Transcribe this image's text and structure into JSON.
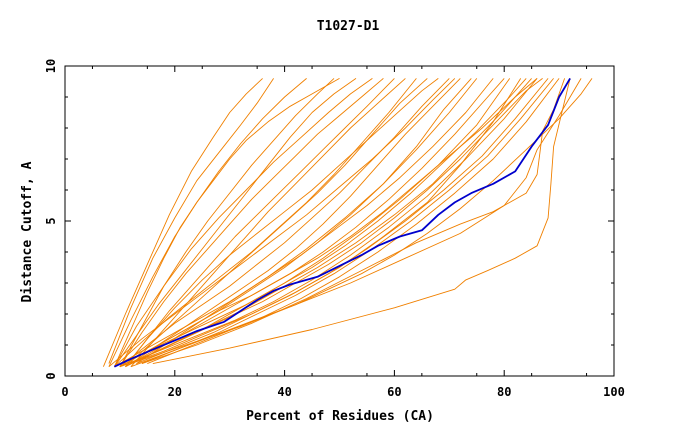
{
  "chart_data": {
    "type": "line",
    "title": "T1027-D1",
    "xlabel": "Percent of Residues (CA)",
    "ylabel": "Distance Cutoff, A",
    "xlim": [
      0,
      100
    ],
    "ylim": [
      0,
      10
    ],
    "x_ticks": [
      "0",
      "20",
      "40",
      "60",
      "80",
      "100"
    ],
    "y_ticks": [
      "0",
      "5",
      "10"
    ],
    "grid": false,
    "legend": "none",
    "colors": {
      "background_models": "#f08000",
      "highlight": "#0000cc",
      "axes": "#000000"
    },
    "highlight_series": {
      "x": [
        9,
        12,
        16,
        20,
        24,
        29,
        32,
        35,
        38,
        41,
        46,
        50,
        54,
        57,
        61,
        65,
        68,
        71,
        74,
        78,
        82,
        85,
        88,
        90,
        92
      ],
      "y": [
        0.3,
        0.55,
        0.85,
        1.15,
        1.45,
        1.75,
        2.1,
        2.45,
        2.75,
        2.95,
        3.2,
        3.55,
        3.9,
        4.2,
        4.5,
        4.7,
        5.2,
        5.6,
        5.9,
        6.2,
        6.6,
        7.4,
        8.1,
        9.0,
        9.6
      ]
    },
    "background_series": [
      {
        "x": [
          9,
          12,
          15,
          18,
          21,
          24,
          27,
          30,
          33,
          37,
          41,
          45,
          50
        ],
        "y": [
          0.3,
          1.5,
          2.7,
          3.8,
          4.8,
          5.6,
          6.3,
          7.0,
          7.6,
          8.2,
          8.7,
          9.1,
          9.6
        ]
      },
      {
        "x": [
          8,
          12,
          16,
          20,
          24,
          28,
          32,
          35,
          38
        ],
        "y": [
          0.4,
          2.2,
          3.8,
          5.1,
          6.3,
          7.2,
          8.1,
          8.8,
          9.6
        ]
      },
      {
        "x": [
          7,
          11,
          15,
          19,
          23,
          27,
          30,
          33,
          36
        ],
        "y": [
          0.3,
          2.0,
          3.6,
          5.2,
          6.6,
          7.7,
          8.5,
          9.1,
          9.6
        ]
      },
      {
        "x": [
          10,
          14,
          18,
          22,
          26,
          30,
          34,
          38,
          42,
          46,
          50,
          54,
          58
        ],
        "y": [
          0.3,
          1.4,
          2.4,
          3.3,
          4.1,
          4.9,
          5.7,
          6.4,
          7.1,
          7.8,
          8.4,
          9.0,
          9.6
        ]
      },
      {
        "x": [
          11,
          15,
          19,
          23,
          27,
          31,
          35,
          39,
          43,
          47,
          51,
          55,
          60
        ],
        "y": [
          0.3,
          1.2,
          2.1,
          2.9,
          3.7,
          4.5,
          5.2,
          5.9,
          6.6,
          7.3,
          8.0,
          8.7,
          9.6
        ]
      },
      {
        "x": [
          9,
          14,
          19,
          24,
          29,
          34,
          39,
          44,
          49,
          54,
          59,
          64
        ],
        "y": [
          0.3,
          1.1,
          1.9,
          2.6,
          3.3,
          4.0,
          4.8,
          5.6,
          6.5,
          7.5,
          8.5,
          9.6
        ]
      },
      {
        "x": [
          10,
          15,
          20,
          25,
          30,
          35,
          40,
          45,
          50,
          55,
          60,
          65,
          70
        ],
        "y": [
          0.3,
          1.0,
          1.7,
          2.3,
          2.9,
          3.6,
          4.3,
          5.1,
          5.9,
          6.8,
          7.7,
          8.7,
          9.6
        ]
      },
      {
        "x": [
          12,
          17,
          22,
          27,
          32,
          37,
          42,
          47,
          52,
          57,
          62,
          67,
          72
        ],
        "y": [
          0.4,
          1.0,
          1.6,
          2.2,
          2.8,
          3.4,
          4.1,
          4.9,
          5.8,
          6.8,
          7.8,
          8.7,
          9.6
        ]
      },
      {
        "x": [
          10,
          16,
          22,
          28,
          34,
          40,
          46,
          52,
          58,
          64,
          70,
          75
        ],
        "y": [
          0.3,
          0.9,
          1.5,
          2.1,
          2.8,
          3.5,
          4.3,
          5.2,
          6.2,
          7.3,
          8.5,
          9.6
        ]
      },
      {
        "x": [
          11,
          17,
          23,
          29,
          35,
          41,
          47,
          53,
          59,
          65,
          71,
          77,
          80
        ],
        "y": [
          0.3,
          0.9,
          1.5,
          2.1,
          2.7,
          3.3,
          4.0,
          4.8,
          5.7,
          6.7,
          7.8,
          9.0,
          9.6
        ]
      },
      {
        "x": [
          9,
          15,
          21,
          27,
          33,
          39,
          45,
          51,
          57,
          63,
          69,
          75,
          81,
          84
        ],
        "y": [
          0.3,
          0.8,
          1.3,
          1.8,
          2.3,
          2.9,
          3.5,
          4.2,
          5.0,
          5.9,
          6.9,
          7.9,
          9.0,
          9.6
        ]
      },
      {
        "x": [
          12,
          18,
          24,
          30,
          36,
          42,
          48,
          54,
          60,
          66,
          72,
          78,
          84,
          87
        ],
        "y": [
          0.4,
          0.9,
          1.4,
          1.9,
          2.4,
          3.0,
          3.6,
          4.3,
          5.1,
          6.0,
          7.0,
          8.1,
          9.2,
          9.6
        ]
      },
      {
        "x": [
          10,
          17,
          24,
          31,
          38,
          45,
          52,
          59,
          66,
          73,
          80,
          86
        ],
        "y": [
          0.3,
          0.8,
          1.3,
          1.8,
          2.4,
          3.1,
          3.9,
          4.8,
          5.8,
          7.0,
          8.3,
          9.6
        ]
      },
      {
        "x": [
          13,
          20,
          27,
          34,
          41,
          48,
          55,
          62,
          69,
          76,
          82,
          88
        ],
        "y": [
          0.4,
          0.9,
          1.4,
          2.0,
          2.6,
          3.3,
          4.1,
          5.0,
          6.0,
          7.1,
          8.3,
          9.6
        ]
      },
      {
        "x": [
          8,
          14,
          20,
          26,
          32,
          38,
          44,
          50,
          56,
          62,
          67,
          71
        ],
        "y": [
          0.3,
          1.2,
          2.0,
          2.8,
          3.6,
          4.4,
          5.2,
          6.1,
          7.0,
          8.0,
          8.9,
          9.6
        ]
      },
      {
        "x": [
          9,
          13,
          17,
          21,
          25,
          29,
          33,
          37,
          41,
          45,
          49,
          53
        ],
        "y": [
          0.3,
          1.3,
          2.3,
          3.2,
          4.1,
          5.0,
          5.9,
          6.8,
          7.7,
          8.5,
          9.1,
          9.6
        ]
      },
      {
        "x": [
          11,
          16,
          21,
          26,
          31,
          36,
          41,
          46,
          51,
          56,
          61,
          66
        ],
        "y": [
          0.3,
          1.1,
          1.9,
          2.7,
          3.5,
          4.3,
          5.1,
          5.9,
          6.8,
          7.8,
          8.8,
          9.6
        ]
      },
      {
        "x": [
          12,
          19,
          26,
          33,
          40,
          47,
          54,
          61,
          68,
          75,
          81
        ],
        "y": [
          0.4,
          1.0,
          1.6,
          2.3,
          3.0,
          3.8,
          4.7,
          5.7,
          6.8,
          8.1,
          9.6
        ]
      },
      {
        "x": [
          10,
          18,
          26,
          34,
          42,
          50,
          58,
          66,
          72,
          78,
          83
        ],
        "y": [
          0.3,
          0.8,
          1.4,
          2.0,
          2.7,
          3.5,
          4.5,
          5.6,
          6.8,
          8.2,
          9.6
        ]
      },
      {
        "x": [
          14,
          21,
          28,
          35,
          42,
          49,
          56,
          63,
          70,
          77,
          83,
          89
        ],
        "y": [
          0.4,
          0.9,
          1.4,
          2.0,
          2.6,
          3.3,
          4.1,
          5.0,
          6.0,
          7.1,
          8.3,
          9.6
        ]
      },
      {
        "x": [
          9,
          13,
          18,
          23,
          28,
          33,
          38,
          43,
          48,
          52,
          56
        ],
        "y": [
          0.3,
          1.6,
          2.9,
          4.1,
          5.1,
          6.0,
          6.9,
          7.7,
          8.5,
          9.1,
          9.6
        ]
      },
      {
        "x": [
          11,
          15,
          20,
          25,
          30,
          35,
          40,
          45,
          50,
          55,
          60,
          65,
          68
        ],
        "y": [
          0.3,
          1.2,
          2.2,
          3.1,
          3.9,
          4.6,
          5.3,
          6.0,
          6.8,
          7.6,
          8.4,
          9.2,
          9.6
        ]
      },
      {
        "x": [
          13,
          19,
          25,
          31,
          37,
          43,
          49,
          55,
          61,
          67,
          73,
          78
        ],
        "y": [
          0.4,
          1.1,
          1.8,
          2.5,
          3.2,
          3.9,
          4.7,
          5.5,
          6.4,
          7.4,
          8.5,
          9.6
        ]
      },
      {
        "x": [
          10,
          16,
          22,
          28,
          34,
          40,
          46,
          52,
          58,
          64,
          70,
          76,
          82,
          86
        ],
        "y": [
          0.3,
          0.9,
          1.5,
          2.1,
          2.6,
          3.2,
          3.8,
          4.5,
          5.3,
          6.2,
          7.1,
          8.0,
          9.0,
          9.6
        ]
      },
      {
        "x": [
          9,
          16,
          23,
          30,
          37,
          44,
          51,
          58,
          64,
          69,
          74
        ],
        "y": [
          0.3,
          1.0,
          1.7,
          2.4,
          3.2,
          4.1,
          5.1,
          6.2,
          7.4,
          8.6,
          9.6
        ]
      },
      {
        "x": [
          12,
          17,
          22,
          27,
          32,
          37,
          42,
          47,
          52,
          57,
          62
        ],
        "y": [
          0.3,
          1.3,
          2.3,
          3.3,
          4.3,
          5.3,
          6.2,
          7.1,
          8.0,
          8.8,
          9.6
        ]
      },
      {
        "x": [
          8,
          12,
          16,
          20,
          24,
          28,
          32,
          36,
          40,
          44
        ],
        "y": [
          0.3,
          1.8,
          3.2,
          4.5,
          5.6,
          6.6,
          7.5,
          8.3,
          9.0,
          9.6
        ]
      },
      {
        "x": [
          10,
          14,
          18,
          22,
          26,
          30,
          34,
          38,
          42,
          46,
          49
        ],
        "y": [
          0.3,
          1.6,
          2.9,
          4.0,
          5.0,
          5.9,
          6.8,
          7.6,
          8.4,
          9.1,
          9.6
        ]
      },
      {
        "x": [
          15,
          22,
          29,
          36,
          43,
          50,
          57,
          64,
          71,
          78,
          84,
          90
        ],
        "y": [
          0.4,
          0.9,
          1.4,
          1.9,
          2.5,
          3.2,
          4.0,
          4.9,
          5.9,
          7.0,
          8.2,
          9.6
        ]
      },
      {
        "x": [
          11,
          18,
          25,
          32,
          39,
          46,
          53,
          60,
          67,
          73,
          79,
          85
        ],
        "y": [
          0.3,
          0.9,
          1.5,
          2.1,
          2.8,
          3.5,
          4.3,
          5.2,
          6.2,
          7.3,
          8.4,
          9.6
        ]
      },
      {
        "x": [
          12,
          18,
          24,
          30,
          36,
          42,
          48,
          54,
          60,
          66,
          72,
          78,
          84,
          90,
          94,
          96
        ],
        "y": [
          0.3,
          0.7,
          1.1,
          1.5,
          1.9,
          2.3,
          2.8,
          3.3,
          3.9,
          4.6,
          5.4,
          6.3,
          7.3,
          8.3,
          9.1,
          9.6
        ]
      },
      {
        "x": [
          16,
          30,
          45,
          60,
          71,
          73,
          77,
          82,
          86,
          88,
          88.5,
          89,
          92
        ],
        "y": [
          0.4,
          0.9,
          1.5,
          2.2,
          2.8,
          3.1,
          3.4,
          3.8,
          4.2,
          5.1,
          6.2,
          7.4,
          9.6
        ]
      },
      {
        "x": [
          14,
          24,
          34,
          44,
          54,
          64,
          72,
          78,
          84,
          86,
          86.5,
          87,
          89,
          91
        ],
        "y": [
          0.4,
          1.0,
          1.7,
          2.5,
          3.4,
          4.3,
          4.9,
          5.3,
          5.9,
          6.5,
          7.2,
          7.9,
          8.6,
          9.6
        ]
      },
      {
        "x": [
          12,
          22,
          32,
          42,
          52,
          62,
          72,
          80,
          84,
          86,
          90,
          94
        ],
        "y": [
          0.4,
          1.0,
          1.6,
          2.3,
          3.0,
          3.8,
          4.6,
          5.5,
          6.4,
          7.3,
          8.4,
          9.6
        ]
      }
    ]
  }
}
